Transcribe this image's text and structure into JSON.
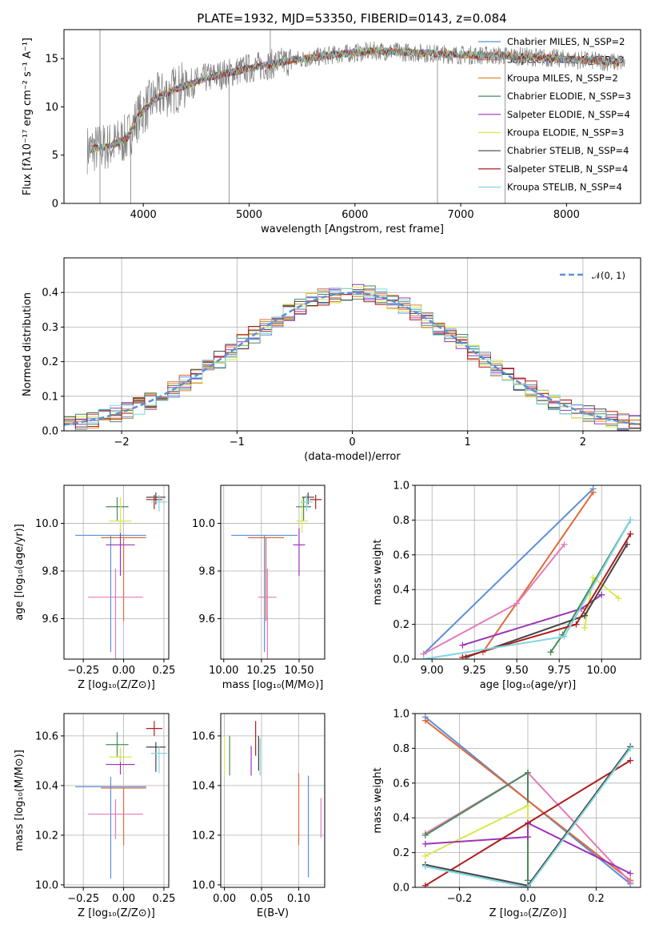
{
  "figure": {
    "title": "PLATE=1932, MJD=53350, FIBERID=0143, z=0.084"
  },
  "chart_data": [
    {
      "id": "spectrum",
      "type": "line",
      "xlabel": "wavelength [Angstrom, rest frame]",
      "ylabel": "Flux [fλ10⁻¹⁷ erg cm⁻² s⁻¹ A⁻¹]",
      "xlim": [
        3250,
        8700
      ],
      "ylim": [
        0,
        18
      ],
      "xticks": [
        4000,
        5000,
        6000,
        7000,
        8000
      ],
      "yticks": [
        0,
        5,
        10,
        15
      ],
      "grid": false,
      "legend_position": "top-right",
      "data_color": "#808080",
      "series": [
        {
          "name": "Chabrier MILES, N_SSP=2",
          "color": "#5b8fd9"
        },
        {
          "name": "Salpeter MILES, N_SSP=3",
          "color": "#e06a3a"
        },
        {
          "name": "Kroupa MILES, N_SSP=2",
          "color": "#d98a2b"
        },
        {
          "name": "Chabrier ELODIE, N_SSP=3",
          "color": "#4a8a5a"
        },
        {
          "name": "Salpeter ELODIE, N_SSP=4",
          "color": "#9b34b8"
        },
        {
          "name": "Kroupa ELODIE, N_SSP=3",
          "color": "#d9e84a"
        },
        {
          "name": "Chabrier STELIB, N_SSP=4",
          "color": "#444444"
        },
        {
          "name": "Salpeter STELIB, N_SSP=4",
          "color": "#b01c1c"
        },
        {
          "name": "Kroupa STELIB, N_SSP=4",
          "color": "#7fd6e0"
        }
      ],
      "continuum_points": {
        "x": [
          3500,
          3700,
          3850,
          3950,
          4100,
          4300,
          4600,
          5000,
          5400,
          5800,
          6200,
          6600,
          7000,
          7400,
          7800,
          8200,
          8500
        ],
        "y": [
          5.6,
          6.0,
          6.8,
          9.0,
          10.8,
          11.8,
          13.0,
          14.0,
          14.8,
          15.4,
          15.8,
          15.6,
          15.4,
          15.3,
          15.1,
          14.8,
          14.6
        ]
      }
    },
    {
      "id": "residuals",
      "type": "line",
      "xlabel": "(data-model)/error",
      "ylabel": "Normed distribution",
      "xlim": [
        -2.5,
        2.5
      ],
      "ylim": [
        0,
        0.5
      ],
      "xticks": [
        -2,
        -1,
        0,
        1,
        2
      ],
      "xtick_labels": [
        "−2",
        "−1",
        "0",
        "1",
        "2"
      ],
      "yticks": [
        0.0,
        0.1,
        0.2,
        0.3,
        0.4
      ],
      "grid": true,
      "legend_position": "top-right",
      "legend_label": "𝒩(0, 1)",
      "gaussian_color": "#5b8fd9"
    },
    {
      "id": "age-z",
      "type": "scatter",
      "xlabel": "Z [log₁₀(Z/Z⊙)]",
      "ylabel": "age  [log₁₀(age/yr)]",
      "xlim": [
        -0.37,
        0.28
      ],
      "ylim": [
        9.43,
        10.16
      ],
      "xticks": [
        -0.25,
        0.0,
        0.25
      ],
      "xtick_labels": [
        "−0.25",
        "0.00",
        "0.25"
      ],
      "yticks": [
        9.6,
        9.8,
        10.0
      ],
      "grid": true,
      "points": [
        {
          "x": -0.08,
          "xerr": 0.22,
          "y": 9.95,
          "yerr": [
            0.49,
            0.0
          ],
          "color": "#5b8fd9"
        },
        {
          "x": 0.0,
          "xerr": 0.14,
          "y": 9.94,
          "yerr": [
            0.35,
            0.0
          ],
          "color": "#e06a3a"
        },
        {
          "x": -0.04,
          "xerr": 0.07,
          "y": 10.07,
          "yerr": [
            0.06,
            0.04
          ],
          "color": "#4a8a5a"
        },
        {
          "x": -0.02,
          "xerr": 0.09,
          "y": 9.91,
          "yerr": [
            0.13,
            0.07
          ],
          "color": "#9b34b8"
        },
        {
          "x": -0.02,
          "xerr": 0.07,
          "y": 10.01,
          "yerr": [
            0.05,
            0.1
          ],
          "color": "#d9e84a"
        },
        {
          "x": -0.05,
          "xerr": 0.17,
          "y": 9.69,
          "yerr": [
            0.41,
            0.12
          ],
          "color": "#e57bb8"
        },
        {
          "x": 0.2,
          "xerr": 0.06,
          "y": 10.11,
          "yerr": [
            0.03,
            0.02
          ],
          "color": "#444444"
        },
        {
          "x": 0.19,
          "xerr": 0.05,
          "y": 10.1,
          "yerr": [
            0.04,
            0.02
          ],
          "color": "#b01c1c"
        },
        {
          "x": 0.22,
          "xerr": 0.05,
          "y": 10.09,
          "yerr": [
            0.04,
            0.03
          ],
          "color": "#7fd6e0"
        }
      ]
    },
    {
      "id": "age-mass",
      "type": "scatter",
      "xlabel": "mass [log₁₀(M/M⊙)]",
      "ylabel": "",
      "xlim": [
        9.98,
        10.67
      ],
      "ylim": [
        9.43,
        10.16
      ],
      "xticks": [
        10.0,
        10.25,
        10.5
      ],
      "xtick_labels": [
        "10.00",
        "10.25",
        "10.50"
      ],
      "yticks": [
        9.6,
        9.8,
        10.0
      ],
      "grid": true,
      "points": [
        {
          "x": 10.27,
          "xerr": 0.22,
          "y": 9.95,
          "yerr": [
            0.49,
            0.0
          ],
          "color": "#5b8fd9"
        },
        {
          "x": 10.28,
          "xerr": 0.12,
          "y": 9.94,
          "yerr": [
            0.35,
            0.0
          ],
          "color": "#e06a3a"
        },
        {
          "x": 10.53,
          "xerr": 0.05,
          "y": 10.07,
          "yerr": [
            0.06,
            0.04
          ],
          "color": "#4a8a5a"
        },
        {
          "x": 10.5,
          "xerr": 0.04,
          "y": 9.91,
          "yerr": [
            0.13,
            0.07
          ],
          "color": "#9b34b8"
        },
        {
          "x": 10.52,
          "xerr": 0.04,
          "y": 10.01,
          "yerr": [
            0.05,
            0.1
          ],
          "color": "#d9e84a"
        },
        {
          "x": 10.29,
          "xerr": 0.06,
          "y": 9.69,
          "yerr": [
            0.41,
            0.12
          ],
          "color": "#e57bb8"
        },
        {
          "x": 10.56,
          "xerr": 0.04,
          "y": 10.11,
          "yerr": [
            0.03,
            0.02
          ],
          "color": "#444444"
        },
        {
          "x": 10.61,
          "xerr": 0.04,
          "y": 10.1,
          "yerr": [
            0.04,
            0.02
          ],
          "color": "#b01c1c"
        },
        {
          "x": 10.55,
          "xerr": 0.04,
          "y": 10.09,
          "yerr": [
            0.04,
            0.03
          ],
          "color": "#7fd6e0"
        }
      ]
    },
    {
      "id": "weight-age",
      "type": "line",
      "xlabel": "age  [log₁₀(age/yr)]",
      "ylabel": "mass weight",
      "xlim": [
        8.9,
        10.23
      ],
      "ylim": [
        0,
        1.0
      ],
      "xticks": [
        9.0,
        9.25,
        9.5,
        9.75,
        10.0
      ],
      "xtick_labels": [
        "9.00",
        "9.25",
        "9.50",
        "9.75",
        "10.00"
      ],
      "yticks": [
        0.0,
        0.2,
        0.4,
        0.6,
        0.8,
        1.0
      ],
      "grid": true,
      "series": [
        {
          "color": "#5b8fd9",
          "x": [
            8.95,
            9.95
          ],
          "y": [
            0.03,
            0.98
          ]
        },
        {
          "color": "#e06a3a",
          "x": [
            9.3,
            9.95
          ],
          "y": [
            0.04,
            0.96
          ]
        },
        {
          "color": "#e57bb8",
          "x": [
            8.95,
            9.5,
            9.78
          ],
          "y": [
            0.03,
            0.32,
            0.66
          ]
        },
        {
          "color": "#9b34b8",
          "x": [
            9.18,
            9.88,
            10.0
          ],
          "y": [
            0.08,
            0.29,
            0.37
          ]
        },
        {
          "color": "#d9e84a",
          "x": [
            9.9,
            9.95,
            10.1
          ],
          "y": [
            0.18,
            0.47,
            0.35
          ]
        },
        {
          "color": "#4a8a5a",
          "x": [
            9.7,
            9.77,
            10.17
          ],
          "y": [
            0.04,
            0.14,
            0.8
          ]
        },
        {
          "color": "#444444",
          "x": [
            9.2,
            9.9,
            10.15
          ],
          "y": [
            0.01,
            0.25,
            0.66
          ]
        },
        {
          "color": "#b01c1c",
          "x": [
            9.18,
            9.85,
            10.17
          ],
          "y": [
            0.01,
            0.2,
            0.72
          ]
        },
        {
          "color": "#7fd6e0",
          "x": [
            8.95,
            9.78,
            10.17
          ],
          "y": [
            0.0,
            0.13,
            0.8
          ]
        }
      ]
    },
    {
      "id": "mass-z",
      "type": "scatter",
      "xlabel": "Z [log₁₀(Z/Z⊙)]",
      "ylabel": "mass [log₁₀(M/M⊙)]",
      "xlim": [
        -0.37,
        0.28
      ],
      "ylim": [
        9.99,
        10.69
      ],
      "xticks": [
        -0.25,
        0.0,
        0.25
      ],
      "xtick_labels": [
        "−0.25",
        "0.00",
        "0.25"
      ],
      "yticks": [
        10.0,
        10.2,
        10.4,
        10.6
      ],
      "grid": true,
      "points": [
        {
          "x": -0.08,
          "xerr": 0.22,
          "y": 10.395,
          "yerr": [
            0.37,
            0.04
          ],
          "color": "#5b8fd9"
        },
        {
          "x": 0.0,
          "xerr": 0.14,
          "y": 10.39,
          "yerr": [
            0.23,
            0.0
          ],
          "color": "#e06a3a"
        },
        {
          "x": -0.04,
          "xerr": 0.07,
          "y": 10.565,
          "yerr": [
            0.05,
            0.05
          ],
          "color": "#4a8a5a"
        },
        {
          "x": -0.02,
          "xerr": 0.09,
          "y": 10.485,
          "yerr": [
            0.04,
            0.06
          ],
          "color": "#9b34b8"
        },
        {
          "x": -0.02,
          "xerr": 0.07,
          "y": 10.515,
          "yerr": [
            0.02,
            0.04
          ],
          "color": "#d9e84a"
        },
        {
          "x": -0.05,
          "xerr": 0.17,
          "y": 10.285,
          "yerr": [
            0.1,
            0.06
          ],
          "color": "#e57bb8"
        },
        {
          "x": 0.2,
          "xerr": 0.06,
          "y": 10.555,
          "yerr": [
            0.1,
            0.02
          ],
          "color": "#444444"
        },
        {
          "x": 0.19,
          "xerr": 0.05,
          "y": 10.63,
          "yerr": [
            0.03,
            0.03
          ],
          "color": "#b01c1c"
        },
        {
          "x": 0.22,
          "xerr": 0.05,
          "y": 10.53,
          "yerr": [
            0.08,
            0.03
          ],
          "color": "#7fd6e0"
        }
      ]
    },
    {
      "id": "mass-ebv",
      "type": "scatter",
      "xlabel": "E(B-V)",
      "ylabel": "",
      "xlim": [
        -0.005,
        0.135
      ],
      "ylim": [
        9.99,
        10.69
      ],
      "xticks": [
        0.0,
        0.05,
        0.1
      ],
      "xtick_labels": [
        "0.00",
        "0.05",
        "0.10"
      ],
      "yticks": [
        10.0,
        10.2,
        10.4,
        10.6
      ],
      "grid": true,
      "points": [
        {
          "x": 0.113,
          "y": 10.29,
          "yerr": [
            0.26,
            0.15
          ],
          "color": "#5b8fd9"
        },
        {
          "x": 0.1,
          "y": 10.3,
          "yerr": [
            0.14,
            0.15
          ],
          "color": "#e06a3a"
        },
        {
          "x": 0.13,
          "y": 10.27,
          "yerr": [
            0.08,
            0.08
          ],
          "color": "#e57bb8"
        },
        {
          "x": 0.0,
          "y": 10.52,
          "yerr": [
            0.08,
            0.08
          ],
          "color": "#d9e84a"
        },
        {
          "x": 0.007,
          "y": 10.52,
          "yerr": [
            0.08,
            0.08
          ],
          "color": "#4a8a5a"
        },
        {
          "x": 0.036,
          "y": 10.52,
          "yerr": [
            0.08,
            0.04
          ],
          "color": "#9b34b8"
        },
        {
          "x": 0.042,
          "y": 10.59,
          "yerr": [
            0.07,
            0.07
          ],
          "color": "#b01c1c"
        },
        {
          "x": 0.046,
          "y": 10.53,
          "yerr": [
            0.07,
            0.07
          ],
          "color": "#444444"
        },
        {
          "x": 0.048,
          "y": 10.52,
          "yerr": [
            0.08,
            0.07
          ],
          "color": "#7fd6e0"
        }
      ]
    },
    {
      "id": "weight-z",
      "type": "line",
      "xlabel": "Z [log₁₀(Z/Z⊙)]",
      "ylabel": "mass weight",
      "xlim": [
        -0.33,
        0.33
      ],
      "ylim": [
        0,
        1.0
      ],
      "xticks": [
        -0.2,
        0.0,
        0.2
      ],
      "xtick_labels": [
        "−0.2",
        "0.0",
        "0.2"
      ],
      "yticks": [
        0.0,
        0.2,
        0.4,
        0.6,
        0.8,
        1.0
      ],
      "grid": true,
      "series": [
        {
          "color": "#5b8fd9",
          "x": [
            -0.3,
            0.3
          ],
          "y": [
            0.98,
            0.02
          ]
        },
        {
          "color": "#e06a3a",
          "x": [
            -0.3,
            0.3
          ],
          "y": [
            0.96,
            0.04
          ]
        },
        {
          "color": "#e57bb8",
          "x": [
            -0.3,
            0.0,
            0.3
          ],
          "y": [
            0.31,
            0.66,
            0.03
          ]
        },
        {
          "color": "#4a8a5a",
          "x": [
            -0.3,
            0.0,
            0.0
          ],
          "y": [
            0.3,
            0.66,
            0.04
          ]
        },
        {
          "color": "#d9e84a",
          "x": [
            -0.3,
            0.0,
            0.0
          ],
          "y": [
            0.18,
            0.47,
            0.35
          ]
        },
        {
          "color": "#9b34b8",
          "x": [
            -0.3,
            0.0,
            0.0,
            0.3
          ],
          "y": [
            0.25,
            0.29,
            0.37,
            0.08
          ]
        },
        {
          "color": "#b01c1c",
          "x": [
            -0.3,
            0.3
          ],
          "y": [
            0.01,
            0.73
          ]
        },
        {
          "color": "#444444",
          "x": [
            -0.3,
            0.0,
            0.3
          ],
          "y": [
            0.13,
            0.01,
            0.81
          ]
        },
        {
          "color": "#7fd6e0",
          "x": [
            -0.3,
            0.0,
            0.3
          ],
          "y": [
            0.12,
            0.0,
            0.8
          ]
        }
      ]
    }
  ]
}
